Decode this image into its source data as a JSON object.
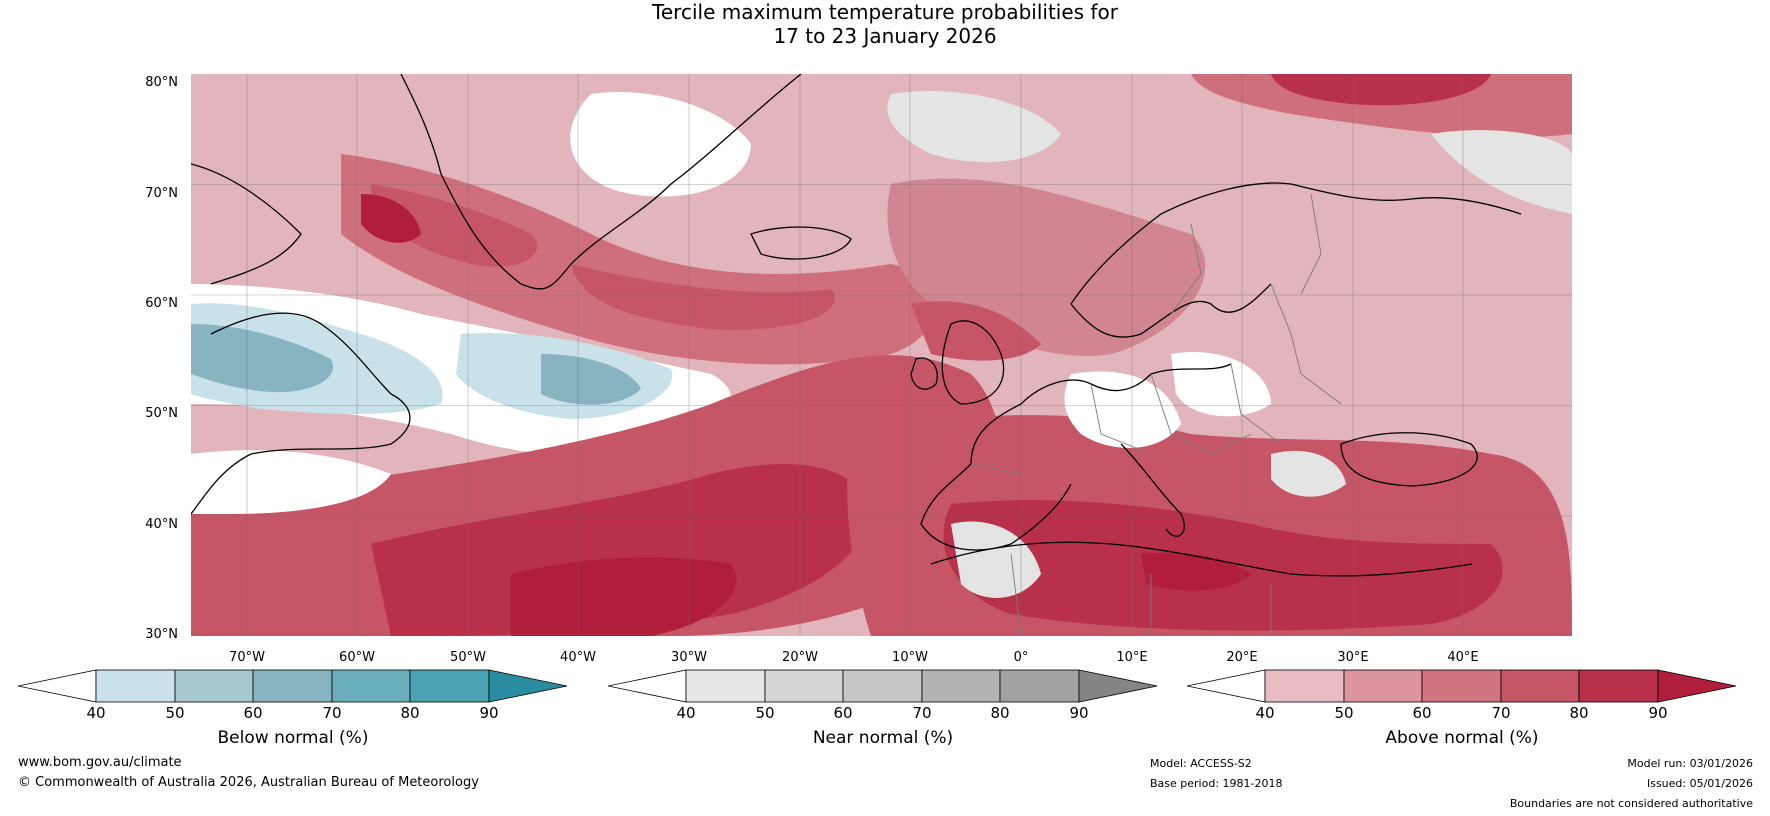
{
  "title": {
    "line1": "Tercile maximum temperature probabilities for",
    "line2": "17 to 23 January 2026"
  },
  "axes": {
    "lat_labels": [
      "80°N",
      "70°N",
      "60°N",
      "50°N",
      "40°N",
      "30°N"
    ],
    "lon_labels": [
      "70°W",
      "60°W",
      "50°W",
      "40°W",
      "30°W",
      "20°W",
      "10°W",
      "0°",
      "10°E",
      "20°E",
      "30°E",
      "40°E"
    ]
  },
  "colorbars": {
    "below": {
      "label": "Below normal (%)",
      "ticks": [
        "40",
        "50",
        "60",
        "70",
        "80",
        "90"
      ],
      "colors": [
        "#ffffff",
        "#c9e2e9",
        "#a8c8d0",
        "#88b3c1",
        "#6aaebe",
        "#4aa3b2",
        "#2a8ca0"
      ]
    },
    "near": {
      "label": "Near normal (%)",
      "ticks": [
        "40",
        "50",
        "60",
        "70",
        "80",
        "90"
      ],
      "colors": [
        "#ffffff",
        "#e6e6e6",
        "#d6d6d6",
        "#c6c6c6",
        "#b4b4b4",
        "#a2a2a2",
        "#858585"
      ]
    },
    "above": {
      "label": "Above normal (%)",
      "ticks": [
        "40",
        "50",
        "60",
        "70",
        "80",
        "90"
      ],
      "colors": [
        "#ffffff",
        "#e9bcc2",
        "#dc959f",
        "#d07580",
        "#c65566",
        "#b8304a",
        "#b01e3c"
      ]
    }
  },
  "footer": {
    "website": "www.bom.gov.au/climate",
    "copyright": "© Commonwealth of Australia 2026, Australian Bureau of Meteorology",
    "model": "Model: ACCESS-S2",
    "base_period": "Base period: 1981-2018",
    "model_run": "Model run: 03/01/2026",
    "issued": "Issued: 05/01/2026",
    "disclaimer": "Boundaries are not considered authoritative"
  }
}
